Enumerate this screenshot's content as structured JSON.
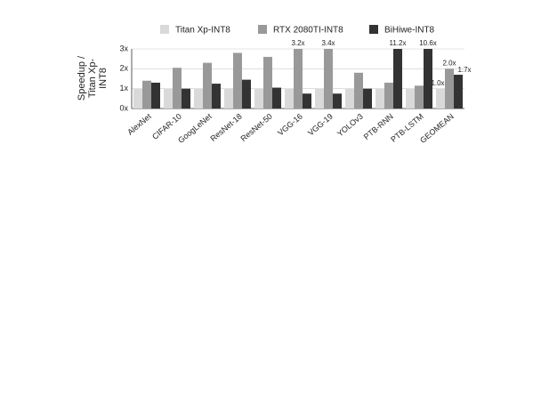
{
  "chart_data": {
    "type": "bar",
    "ylabel": [
      "Speedup /",
      "Titan Xp-",
      "INT8"
    ],
    "categories": [
      "AlexNet",
      "CIFAR-10",
      "GoogLeNet",
      "ResNet-18",
      "ResNet-50",
      "VGG-16",
      "VGG-19",
      "YOLOv3",
      "PTB-RNN",
      "PTB-LSTM",
      "GEOMEAN"
    ],
    "series": [
      {
        "name": "Titan Xp-INT8",
        "color": "#d9d9d9",
        "values": [
          1,
          1,
          1,
          1,
          1,
          1,
          1,
          1,
          1,
          1,
          1
        ],
        "value_labels": [
          null,
          null,
          null,
          null,
          null,
          null,
          null,
          null,
          null,
          null,
          "1.0x"
        ]
      },
      {
        "name": "RTX 2080TI-INT8",
        "color": "#999999",
        "values": [
          1.4,
          2.05,
          2.3,
          2.8,
          2.6,
          3.2,
          3.4,
          1.8,
          1.3,
          1.15,
          2.0
        ],
        "value_labels": [
          null,
          null,
          null,
          null,
          null,
          "3.2x",
          "3.4x",
          null,
          null,
          null,
          "2.0x"
        ]
      },
      {
        "name": "BiHiwe-INT8",
        "color": "#333333",
        "values": [
          1.3,
          1.0,
          1.25,
          1.45,
          1.05,
          0.75,
          0.75,
          1.0,
          11.2,
          10.6,
          1.7
        ],
        "value_labels": [
          null,
          null,
          null,
          null,
          null,
          null,
          null,
          null,
          "11.2x",
          "10.6x",
          "1.7x"
        ]
      }
    ],
    "ylim": [
      0,
      3
    ],
    "yticks": [
      {
        "value": 0,
        "label": "0x"
      },
      {
        "value": 1,
        "label": "1x"
      },
      {
        "value": 2,
        "label": "2x"
      },
      {
        "value": 3,
        "label": "3x"
      }
    ],
    "grid": true,
    "legend": "top"
  }
}
